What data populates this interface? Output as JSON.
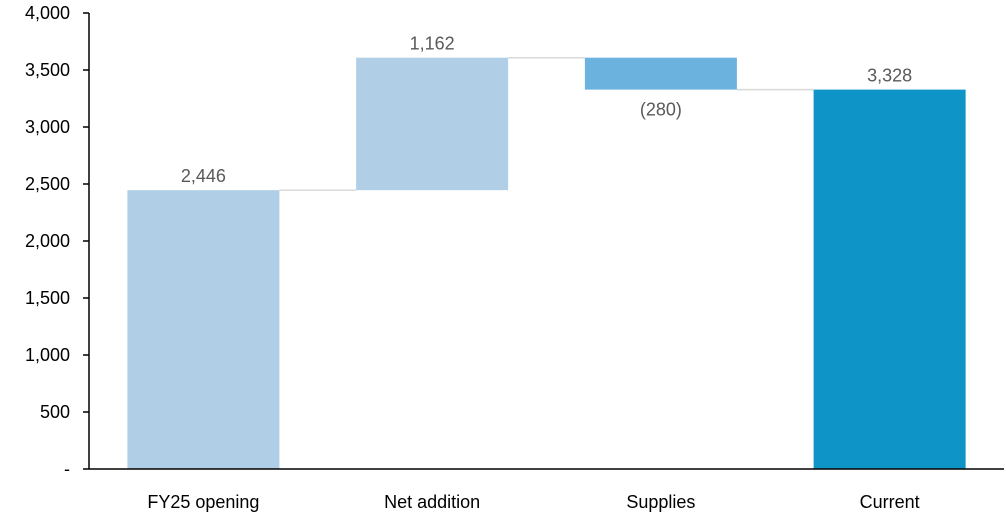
{
  "chart_data": {
    "type": "bar",
    "subtype": "waterfall",
    "categories": [
      "FY25 opening",
      "Net addition",
      "Supplies",
      "Current"
    ],
    "values": [
      2446,
      1162,
      -280,
      3328
    ],
    "kinds": [
      "total",
      "delta",
      "delta",
      "total"
    ],
    "data_labels": [
      "2,446",
      "1,162",
      "(280)",
      "3,328"
    ],
    "ylim": [
      0,
      4000
    ],
    "yticks": [
      0,
      500,
      1000,
      1500,
      2000,
      2500,
      3000,
      3500,
      4000
    ],
    "ytick_labels": [
      "-",
      "500",
      "1,000",
      "1,500",
      "2,000",
      "2,500",
      "3,000",
      "3,500",
      "4,000"
    ],
    "grid": false,
    "connectors": true,
    "colors": {
      "opening": "#b0cfe6",
      "increase": "#b0cfe6",
      "decrease": "#6bb2de",
      "current": "#0f94c7",
      "connector": "#d9d9d9",
      "axis": "#000000",
      "data_label": "#595959"
    }
  }
}
